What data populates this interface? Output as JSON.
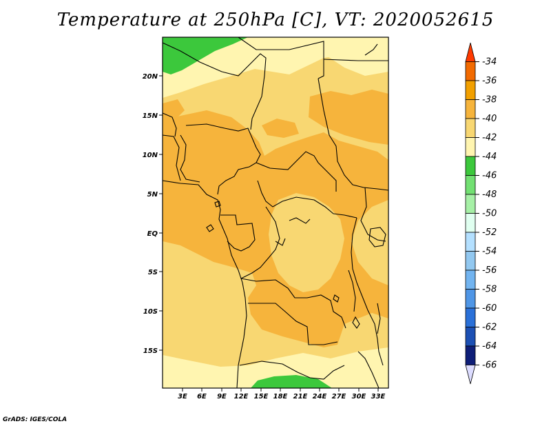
{
  "title": "Temperature at 250hPa [C], VT: 2020052615",
  "credit": "GrADS: IGES/COLA",
  "map": {
    "lat_labels": [
      "20N",
      "15N",
      "10N",
      "5N",
      "EQ",
      "5S",
      "10S",
      "15S"
    ],
    "lon_labels": [
      "3E",
      "6E",
      "9E",
      "12E",
      "15E",
      "18E",
      "21E",
      "24E",
      "27E",
      "30E",
      "33E"
    ],
    "lon_range": [
      0.5,
      34.5
    ],
    "lat_range": [
      -20,
      24.5
    ]
  },
  "colorbar": {
    "labels": [
      "-34",
      "-36",
      "-38",
      "-40",
      "-42",
      "-44",
      "-46",
      "-48",
      "-50",
      "-52",
      "-54",
      "-56",
      "-58",
      "-60",
      "-62",
      "-64",
      "-66"
    ],
    "colors": [
      "#ff3a00",
      "#f26a00",
      "#f2a000",
      "#f6b43c",
      "#f8d772",
      "#fff5b0",
      "#3cc83c",
      "#72e072",
      "#a6f0a6",
      "#e0fff0",
      "#b4e0ff",
      "#92c8f0",
      "#72b4f0",
      "#4f96e6",
      "#2a70d8",
      "#1c50b4",
      "#0e1e78",
      "#dcdcff"
    ]
  },
  "colors": {
    "t_minus38": "#f6b43c",
    "t_minus40": "#f8d772",
    "t_minus42": "#fff5b0",
    "t_minus44": "#3cc83c"
  }
}
